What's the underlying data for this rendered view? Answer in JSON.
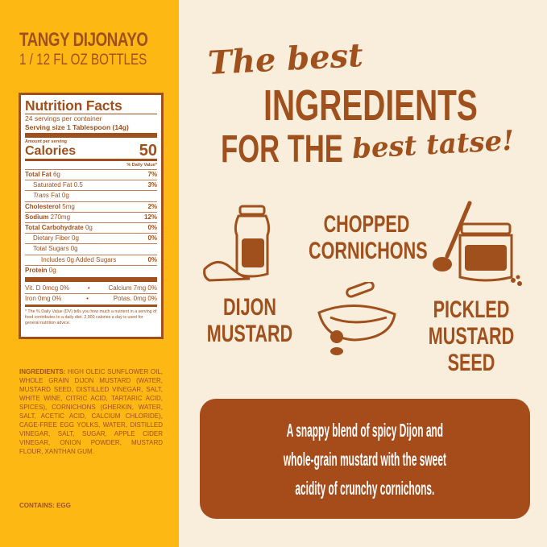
{
  "product": {
    "name": "TANGY DIJONAYO",
    "size": "1 / 12 FL OZ BOTTLES"
  },
  "nutrition": {
    "title": "Nutrition Facts",
    "servings": "24 servings per container",
    "serving_size_label": "Serving size",
    "serving_size": "1 Tablespoon (14g)",
    "amount_per_serving": "Amount per serving",
    "calories_label": "Calories",
    "calories": "50",
    "dv_header": "% Daily Value*",
    "rows": [
      {
        "label": "Total Fat",
        "amount": "6g",
        "dv": "7%"
      },
      {
        "label": "Saturated Fat",
        "amount": "0.5",
        "dv": "3%"
      },
      {
        "label": "Trans",
        "amount": "Fat 0g",
        "dv": ""
      },
      {
        "label": "Cholesterol",
        "amount": "5mg",
        "dv": "2%"
      },
      {
        "label": "Sodium",
        "amount": "270mg",
        "dv": "12%"
      },
      {
        "label": "Total Carbohydrate",
        "amount": "0g",
        "dv": "0%"
      },
      {
        "label": "Dietary Fiber",
        "amount": "0g",
        "dv": "0%"
      },
      {
        "label": "Total Sugars",
        "amount": "0g",
        "dv": ""
      },
      {
        "label": "Includes 0g Added Sugars",
        "amount": "",
        "dv": "0%"
      },
      {
        "label": "Protein",
        "amount": "0g",
        "dv": ""
      }
    ],
    "vitamins": [
      [
        "Vit. D 0mcg 0%",
        "•",
        "Calcium 7mg 0%"
      ],
      [
        "Iron 0mg 0%",
        "•",
        "Potas. 0mg 0%"
      ]
    ],
    "footnote": "* The % Daily Value (DV) tells you how much a nutrient in a serving of food contributes to a daily diet. 2,000 calories a day is used for general nutrition advice."
  },
  "ingredients_label": "INGREDIENTS:",
  "ingredients": "HIGH OLEIC SUNFLOWER OIL, WHOLE GRAIN DIJON MUSTARD (WATER, MUSTARD SEED, DISTILLED VINEGAR, SALT, WHITE WINE, CITRIC ACID, TARTARIC ACID, SPICES), CORNICHONS (GHERKIN, WATER, SALT, ACETIC ACID, CALCIUM CHLORIDE), CAGE-FREE EGG YOLKS, WATER, DISTILLED VINEGAR, SALT, SUGAR, APPLE CIDER VINEGAR, ONION POWDER, MUSTARD FLOUR, XANTHAN GUM.",
  "contains": "CONTAINS: EGG",
  "headline": {
    "line1": "The best",
    "line2": "INGREDIENTS",
    "line3a": "FOR THE",
    "line3b": "best tatse!"
  },
  "features": [
    {
      "line1": "CHOPPED",
      "line2": "CORNICHONS",
      "icon": "cornichon-jar-icon"
    },
    {
      "line1": "DIJON",
      "line2": "MUSTARD",
      "icon": "mustard-jar-icon"
    },
    {
      "line1": "PICKLED",
      "line2": "MUSTARD",
      "line3": "SEED",
      "icon": "seed-jar-spoon-icon"
    }
  ],
  "tagline": [
    "A snappy blend of spicy Dijon and",
    "whole-grain mustard with the sweet",
    "acidity of crunchy cornichons."
  ],
  "colors": {
    "yellow": "#fdb813",
    "brown": "#a0501c",
    "cream": "#f9eedb",
    "box": "#a64b1a"
  }
}
